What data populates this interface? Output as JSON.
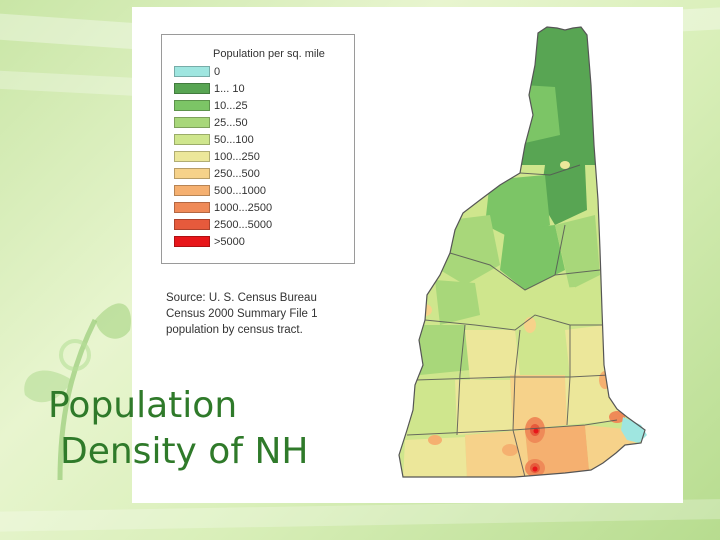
{
  "legend": {
    "title": "Population per sq. mile",
    "items": [
      {
        "label": "0",
        "color": "#9fe6e0"
      },
      {
        "label": "1... 10",
        "color": "#58a553"
      },
      {
        "label": "10...25",
        "color": "#7cc566"
      },
      {
        "label": "25...50",
        "color": "#a8d77a"
      },
      {
        "label": "50...100",
        "color": "#cfe68d"
      },
      {
        "label": "100...250",
        "color": "#ece79a"
      },
      {
        "label": "250...500",
        "color": "#f6d28a"
      },
      {
        "label": "500...1000",
        "color": "#f5b070"
      },
      {
        "label": "1000...2500",
        "color": "#ef8a58"
      },
      {
        "label": "2500...5000",
        "color": "#e65a3c"
      },
      {
        "label": ">5000",
        "color": "#e8161a"
      }
    ]
  },
  "source": {
    "line1": "Source: U. S. Census Bureau",
    "line2": "Census 2000 Summary File 1",
    "line3": "population by census tract."
  },
  "slide": {
    "title_line1": "Population",
    "title_line2": "Density of NH"
  },
  "theme": {
    "title_color": "#2f7a2a",
    "border_color": "#555555"
  }
}
